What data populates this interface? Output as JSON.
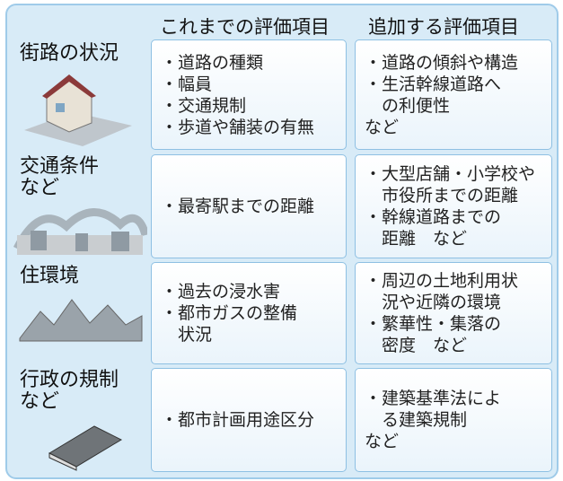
{
  "header": {
    "col1": "これまでの評価項目",
    "col2": "追加する評価項目"
  },
  "rows": [
    {
      "label": [
        "街路の状況"
      ],
      "current": [
        [
          "・道路の種類"
        ],
        [
          "・幅員"
        ],
        [
          "・交通規制"
        ],
        [
          "・歩道や舗装の有無"
        ]
      ],
      "added": [
        [
          "・道路の傾斜や構造"
        ],
        [
          "・生活幹線道路へ",
          "の利便性"
        ],
        [
          "など"
        ]
      ]
    },
    {
      "label": [
        "交通条件",
        "など"
      ],
      "current": [
        [
          "・最寄駅までの距離"
        ]
      ],
      "added": [
        [
          "・大型店舗・小学校や",
          "市役所までの距離"
        ],
        [
          "・幹線道路までの",
          "距離　など"
        ]
      ]
    },
    {
      "label": [
        "住環境"
      ],
      "current": [
        [
          "・過去の浸水害"
        ],
        [
          "・都市ガスの整備",
          "状況"
        ]
      ],
      "added": [
        [
          "・周辺の土地利用状",
          "況や近隣の環境"
        ],
        [
          "・繁華性・集落の",
          "密度　など"
        ]
      ]
    },
    {
      "label": [
        "行政の規制",
        "など"
      ],
      "current": [
        [
          "・都市計画用途区分"
        ]
      ],
      "added": [
        [
          "・建築基準法によ",
          "る建築規制"
        ],
        [
          "など"
        ]
      ]
    }
  ]
}
